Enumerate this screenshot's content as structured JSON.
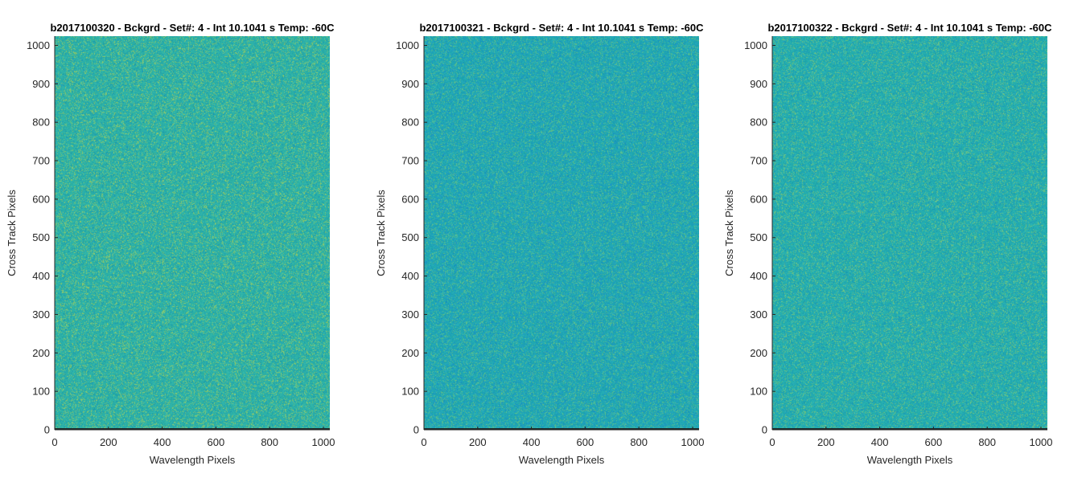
{
  "chart_data": [
    {
      "type": "heatmap",
      "title": "b2017100320 - Bckgrd - Set#: 4 - Int 10.1041 s Temp: -60C",
      "xlabel": "Wavelength Pixels",
      "ylabel": "Cross Track Pixels",
      "xlim": [
        0,
        1024
      ],
      "ylim": [
        0,
        1024
      ],
      "xticks": [
        0,
        200,
        400,
        600,
        800,
        1000
      ],
      "yticks": [
        0,
        100,
        200,
        300,
        400,
        500,
        600,
        700,
        800,
        900,
        1000
      ],
      "base_color": "#2fb3a6",
      "low_color": "#1f9fb0",
      "high_color": "#8cc86a"
    },
    {
      "type": "heatmap",
      "title": "b2017100321 - Bckgrd - Set#: 4 - Int 10.1041 s Temp: -60C",
      "xlabel": "Wavelength Pixels",
      "ylabel": "Cross Track Pixels",
      "xlim": [
        0,
        1024
      ],
      "ylim": [
        0,
        1024
      ],
      "xticks": [
        0,
        200,
        400,
        600,
        800,
        1000
      ],
      "yticks": [
        0,
        100,
        200,
        300,
        400,
        500,
        600,
        700,
        800,
        900,
        1000
      ],
      "base_color": "#22a9b2",
      "low_color": "#1b96c2",
      "high_color": "#5dbf8a"
    },
    {
      "type": "heatmap",
      "title": "b2017100322 - Bckgrd - Set#: 4 - Int 10.1041 s Temp: -60C",
      "xlabel": "Wavelength Pixels",
      "ylabel": "Cross Track Pixels",
      "xlim": [
        0,
        1024
      ],
      "ylim": [
        0,
        1024
      ],
      "xticks": [
        0,
        200,
        400,
        600,
        800,
        1000
      ],
      "yticks": [
        0,
        100,
        200,
        300,
        400,
        500,
        600,
        700,
        800,
        900,
        1000
      ],
      "base_color": "#26afae",
      "low_color": "#1d9cb8",
      "high_color": "#6fc380"
    }
  ]
}
